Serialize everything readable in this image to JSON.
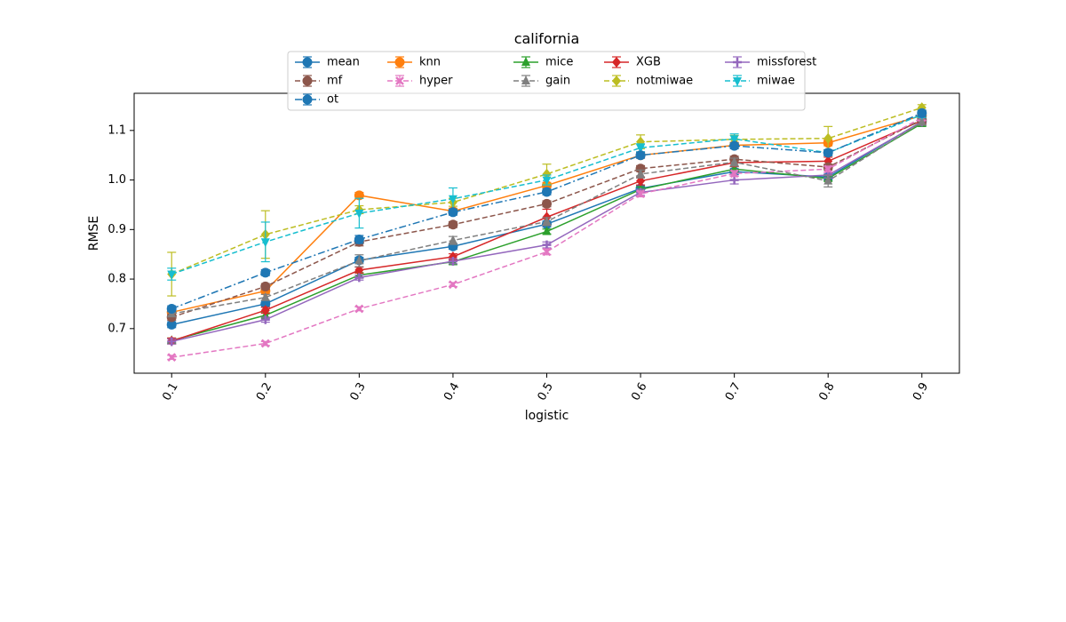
{
  "chart_data": {
    "type": "line",
    "title": "california",
    "xlabel": "logistic",
    "ylabel": "RMSE",
    "x": [
      0.1,
      0.2,
      0.3,
      0.4,
      0.5,
      0.6,
      0.7,
      0.8,
      0.9
    ],
    "x_tick_labels": [
      "0.1",
      "0.2",
      "0.3",
      "0.4",
      "0.5",
      "0.6",
      "0.7",
      "0.8",
      "0.9"
    ],
    "xlim": [
      0.06,
      0.94
    ],
    "ylim": [
      0.61,
      1.175
    ],
    "y_ticks": [
      0.7,
      0.8,
      0.9,
      1.0,
      1.1
    ],
    "y_tick_labels": [
      "0.7",
      "0.8",
      "0.9",
      "1.0",
      "1.1"
    ],
    "grid": false,
    "legend_position": "top-center",
    "legend_columns": 5,
    "series": [
      {
        "name": "mean",
        "color": "#1f77b4",
        "dash": "solid",
        "marker": "circle",
        "values": [
          0.708,
          0.75,
          0.838,
          0.866,
          0.911,
          0.983,
          1.017,
          1.006,
          1.118
        ],
        "errors": [
          0.006,
          0.006,
          0.006,
          0.006,
          0.006,
          0.006,
          0.006,
          0.006,
          0.006
        ]
      },
      {
        "name": "knn",
        "color": "#ff7f0e",
        "dash": "solid",
        "marker": "circle",
        "values": [
          0.733,
          0.776,
          0.969,
          0.937,
          0.989,
          1.05,
          1.07,
          1.075,
          1.13
        ],
        "errors": [
          0.006,
          0.006,
          0.006,
          0.006,
          0.006,
          0.006,
          0.006,
          0.006,
          0.006
        ]
      },
      {
        "name": "mice",
        "color": "#2ca02c",
        "dash": "solid",
        "marker": "triangle-up",
        "values": [
          0.676,
          0.727,
          0.808,
          0.835,
          0.896,
          0.981,
          1.022,
          1.003,
          1.114
        ],
        "errors": [
          0.005,
          0.005,
          0.005,
          0.005,
          0.005,
          0.005,
          0.005,
          0.005,
          0.005
        ]
      },
      {
        "name": "XGB",
        "color": "#d62728",
        "dash": "solid",
        "marker": "diamond",
        "values": [
          0.675,
          0.737,
          0.818,
          0.845,
          0.925,
          0.998,
          1.035,
          1.038,
          1.12
        ],
        "errors": [
          0.006,
          0.006,
          0.006,
          0.006,
          0.016,
          0.008,
          0.008,
          0.008,
          0.006
        ]
      },
      {
        "name": "missforest",
        "color": "#9467bd",
        "dash": "solid",
        "marker": "plus",
        "values": [
          0.674,
          0.718,
          0.803,
          0.836,
          0.869,
          0.975,
          1.0,
          1.01,
          1.117
        ],
        "errors": [
          0.005,
          0.005,
          0.005,
          0.005,
          0.006,
          0.006,
          0.008,
          0.006,
          0.006
        ]
      },
      {
        "name": "mf",
        "color": "#8c564b",
        "dash": "dashed",
        "marker": "circle",
        "values": [
          0.723,
          0.785,
          0.875,
          0.91,
          0.952,
          1.023,
          1.042,
          1.026,
          1.122
        ],
        "errors": [
          0.006,
          0.006,
          0.008,
          0.006,
          0.006,
          0.006,
          0.006,
          0.006,
          0.006
        ]
      },
      {
        "name": "hyper",
        "color": "#e377c2",
        "dash": "dashed",
        "marker": "x",
        "values": [
          0.642,
          0.67,
          0.74,
          0.789,
          0.855,
          0.972,
          1.013,
          1.022,
          1.126
        ],
        "errors": [
          0.004,
          0.004,
          0.004,
          0.004,
          0.006,
          0.006,
          0.006,
          0.006,
          0.006
        ]
      },
      {
        "name": "gain",
        "color": "#7f7f7f",
        "dash": "dashed",
        "marker": "triangle-up",
        "values": [
          0.73,
          0.763,
          0.837,
          0.878,
          0.916,
          1.012,
          1.036,
          0.998,
          1.117
        ],
        "errors": [
          0.006,
          0.006,
          0.012,
          0.008,
          0.008,
          0.008,
          0.008,
          0.012,
          0.006
        ]
      },
      {
        "name": "notmiwae",
        "color": "#bcbd22",
        "dash": "dashed",
        "marker": "diamond",
        "values": [
          0.81,
          0.89,
          0.94,
          0.955,
          1.012,
          1.077,
          1.082,
          1.084,
          1.146
        ],
        "errors": [
          0.044,
          0.048,
          0.008,
          0.008,
          0.02,
          0.014,
          0.008,
          0.024,
          0.006
        ]
      },
      {
        "name": "miwae",
        "color": "#17becf",
        "dash": "dashed",
        "marker": "triangle-down",
        "values": [
          0.81,
          0.875,
          0.933,
          0.962,
          1.0,
          1.065,
          1.083,
          1.055,
          1.132
        ],
        "errors": [
          0.012,
          0.04,
          0.03,
          0.022,
          0.01,
          0.008,
          0.01,
          0.006,
          0.006
        ]
      },
      {
        "name": "ot",
        "color": "#1f77b4",
        "dash": "dashdot",
        "marker": "circle",
        "values": [
          0.74,
          0.813,
          0.88,
          0.935,
          0.976,
          1.05,
          1.069,
          1.055,
          1.135
        ],
        "errors": [
          0.006,
          0.006,
          0.008,
          0.006,
          0.006,
          0.006,
          0.006,
          0.006,
          0.006
        ]
      }
    ]
  }
}
